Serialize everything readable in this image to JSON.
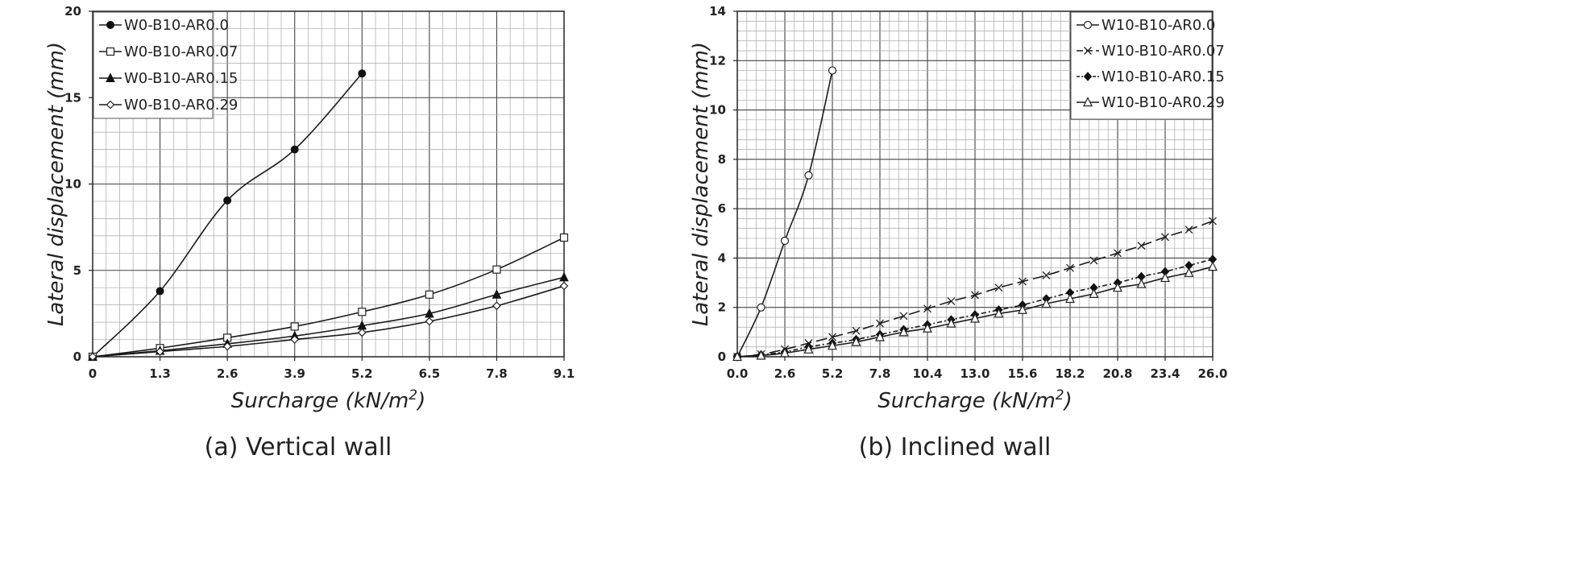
{
  "chart_data": [
    {
      "type": "line",
      "caption": "(a) Vertical wall",
      "xlabel": "Surcharge (kN/m²)",
      "ylabel": "Lateral displacement (mm)",
      "xlim": [
        0,
        9.1
      ],
      "ylim": [
        0,
        20
      ],
      "x_ticks": [
        "0",
        "1.3",
        "2.6",
        "3.9",
        "5.2",
        "6.5",
        "7.8",
        "9.1"
      ],
      "y_ticks": [
        "0",
        "5",
        "10",
        "15",
        "20"
      ],
      "grid": true,
      "legend_position": "top-left",
      "series": [
        {
          "name": "W0-B10-AR0.0",
          "marker": "filled-circle",
          "line": "solid",
          "x": [
            0,
            1.3,
            2.6,
            3.9,
            5.2
          ],
          "y": [
            0,
            3.8,
            9.05,
            12.0,
            16.4
          ]
        },
        {
          "name": "W0-B10-AR0.07",
          "marker": "open-square",
          "line": "solid",
          "x": [
            0,
            1.3,
            2.6,
            3.9,
            5.2,
            6.5,
            7.8,
            9.1
          ],
          "y": [
            0,
            0.5,
            1.1,
            1.75,
            2.6,
            3.6,
            5.05,
            6.9
          ]
        },
        {
          "name": "W0-B10-AR0.15",
          "marker": "filled-triangle",
          "line": "solid",
          "x": [
            0,
            1.3,
            2.6,
            3.9,
            5.2,
            6.5,
            7.8,
            9.1
          ],
          "y": [
            0,
            0.35,
            0.75,
            1.2,
            1.8,
            2.5,
            3.6,
            4.6
          ]
        },
        {
          "name": "W0-B10-AR0.29",
          "marker": "open-diamond",
          "line": "solid",
          "x": [
            0,
            1.3,
            2.6,
            3.9,
            5.2,
            6.5,
            7.8,
            9.1
          ],
          "y": [
            0,
            0.3,
            0.6,
            1.0,
            1.4,
            2.05,
            2.95,
            4.1
          ]
        }
      ]
    },
    {
      "type": "line",
      "caption": "(b) Inclined wall",
      "xlabel": "Surcharge (kN/m²)",
      "ylabel": "Lateral displacement (mm)",
      "xlim": [
        0,
        26.0
      ],
      "ylim": [
        0,
        14
      ],
      "x_ticks": [
        "0.0",
        "2.6",
        "5.2",
        "7.8",
        "10.4",
        "13.0",
        "15.6",
        "18.2",
        "20.8",
        "23.4",
        "26.0"
      ],
      "y_ticks": [
        "0",
        "2",
        "4",
        "6",
        "8",
        "10",
        "12",
        "14"
      ],
      "grid": true,
      "legend_position": "top-right",
      "series": [
        {
          "name": "W10-B10-AR0.0",
          "marker": "open-circle",
          "line": "solid",
          "x": [
            0,
            1.3,
            2.6,
            3.9,
            5.2
          ],
          "y": [
            0,
            2.0,
            4.7,
            7.35,
            11.6
          ]
        },
        {
          "name": "W10-B10-AR0.07",
          "marker": "cross",
          "line": "long-dash",
          "x": [
            0,
            1.3,
            2.6,
            3.9,
            5.2,
            6.5,
            7.8,
            9.1,
            10.4,
            11.7,
            13.0,
            14.3,
            15.6,
            16.9,
            18.2,
            19.5,
            20.8,
            22.1,
            23.4,
            24.7,
            26.0
          ],
          "y": [
            0,
            0.1,
            0.3,
            0.55,
            0.8,
            1.05,
            1.35,
            1.65,
            1.95,
            2.25,
            2.5,
            2.8,
            3.05,
            3.3,
            3.6,
            3.9,
            4.2,
            4.5,
            4.85,
            5.15,
            5.5
          ]
        },
        {
          "name": "W10-B10-AR0.15",
          "marker": "filled-diamond",
          "line": "dash-dot",
          "x": [
            0,
            1.3,
            2.6,
            3.9,
            5.2,
            6.5,
            7.8,
            9.1,
            10.4,
            11.7,
            13.0,
            14.3,
            15.6,
            16.9,
            18.2,
            19.5,
            20.8,
            22.1,
            23.4,
            24.7,
            26.0
          ],
          "y": [
            0,
            0.08,
            0.2,
            0.4,
            0.55,
            0.7,
            0.9,
            1.1,
            1.3,
            1.5,
            1.7,
            1.9,
            2.1,
            2.35,
            2.6,
            2.8,
            3.0,
            3.25,
            3.45,
            3.7,
            3.95
          ]
        },
        {
          "name": "W10-B10-AR0.29",
          "marker": "open-triangle",
          "line": "solid",
          "x": [
            0,
            1.3,
            2.6,
            3.9,
            5.2,
            6.5,
            7.8,
            9.1,
            10.4,
            11.7,
            13.0,
            14.3,
            15.6,
            16.9,
            18.2,
            19.5,
            20.8,
            22.1,
            23.4,
            24.7,
            26.0
          ],
          "y": [
            0,
            0.05,
            0.15,
            0.3,
            0.45,
            0.6,
            0.8,
            1.0,
            1.15,
            1.35,
            1.55,
            1.75,
            1.9,
            2.15,
            2.35,
            2.55,
            2.8,
            2.95,
            3.2,
            3.4,
            3.65
          ]
        }
      ]
    }
  ]
}
